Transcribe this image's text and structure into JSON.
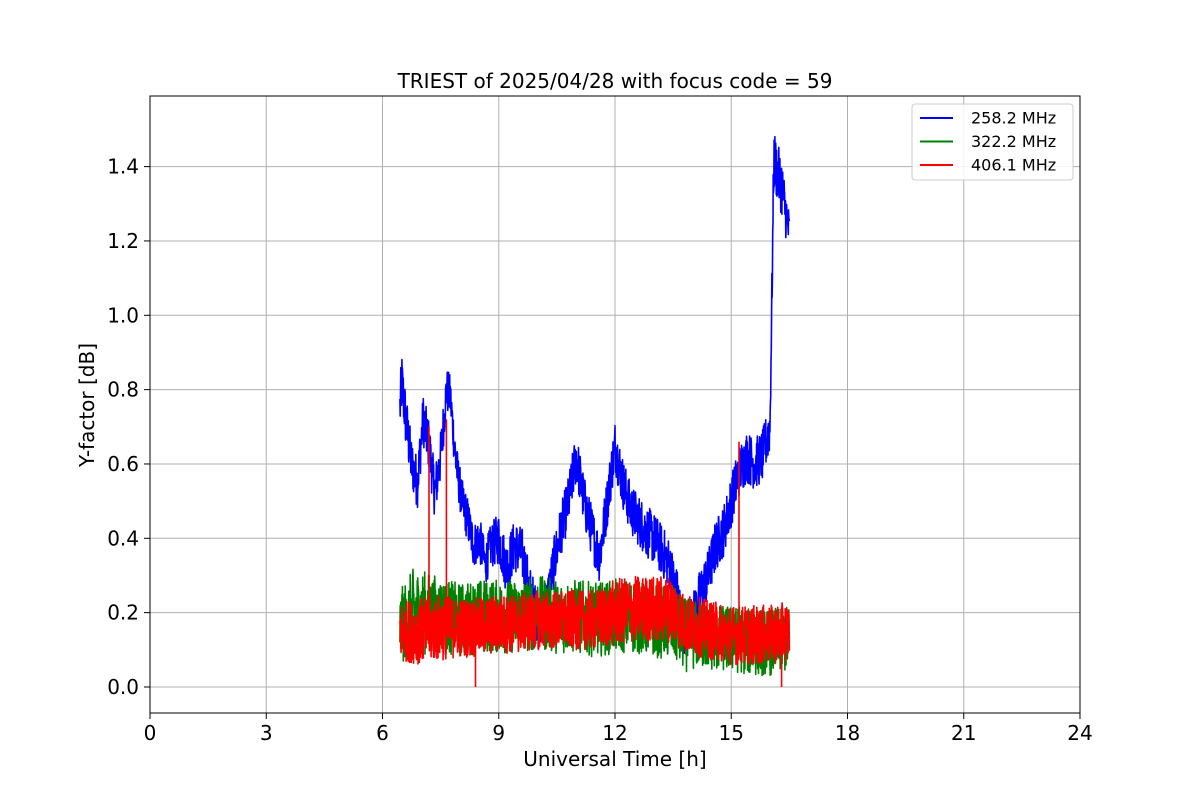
{
  "chart_data": {
    "type": "line",
    "title": "TRIEST of 2025/04/28 with focus code = 59",
    "xlabel": "Universal Time [h]",
    "ylabel": "Y-factor [dB]",
    "xlim": [
      0,
      24
    ],
    "ylim": [
      -0.07,
      1.59
    ],
    "xticks": [
      0,
      3,
      6,
      9,
      12,
      15,
      18,
      21,
      24
    ],
    "yticks": [
      0.0,
      0.2,
      0.4,
      0.6,
      0.8,
      1.0,
      1.2,
      1.4
    ],
    "xtick_labels": [
      "0",
      "3",
      "6",
      "9",
      "12",
      "15",
      "18",
      "21",
      "24"
    ],
    "ytick_labels": [
      "0.0",
      "0.2",
      "0.4",
      "0.6",
      "0.8",
      "1.0",
      "1.2",
      "1.4"
    ],
    "grid": true,
    "legend_position": "top-right",
    "series": [
      {
        "name": "258.2 MHz",
        "color": "#0000ff",
        "x": [
          6.45,
          6.5,
          6.6,
          6.75,
          6.9,
          7.05,
          7.2,
          7.35,
          7.5,
          7.65,
          7.75,
          7.9,
          8.05,
          8.2,
          8.35,
          8.5,
          8.65,
          8.8,
          9.0,
          9.2,
          9.4,
          9.6,
          9.8,
          10.0,
          10.2,
          10.4,
          10.6,
          10.8,
          11.0,
          11.2,
          11.4,
          11.6,
          11.8,
          12.0,
          12.2,
          12.4,
          12.6,
          12.8,
          13.0,
          13.2,
          13.4,
          13.6,
          13.8,
          14.0,
          14.2,
          14.4,
          14.6,
          14.8,
          15.0,
          15.2,
          15.4,
          15.6,
          15.8,
          16.0,
          16.1,
          16.2,
          16.3,
          16.4,
          16.5
        ],
        "y": [
          0.75,
          0.82,
          0.72,
          0.6,
          0.55,
          0.72,
          0.65,
          0.52,
          0.62,
          0.8,
          0.78,
          0.6,
          0.5,
          0.45,
          0.38,
          0.4,
          0.33,
          0.38,
          0.4,
          0.32,
          0.38,
          0.36,
          0.25,
          0.18,
          0.2,
          0.32,
          0.42,
          0.5,
          0.62,
          0.5,
          0.42,
          0.35,
          0.5,
          0.65,
          0.55,
          0.48,
          0.45,
          0.42,
          0.4,
          0.37,
          0.33,
          0.25,
          0.15,
          0.18,
          0.25,
          0.3,
          0.38,
          0.42,
          0.5,
          0.58,
          0.62,
          0.6,
          0.62,
          0.7,
          1.42,
          1.38,
          1.35,
          1.28,
          1.22
        ],
        "amp": [
          0.08,
          0.08,
          0.08,
          0.07,
          0.07,
          0.07,
          0.07,
          0.07,
          0.07,
          0.06,
          0.06,
          0.06,
          0.06,
          0.06,
          0.06,
          0.06,
          0.06,
          0.06,
          0.07,
          0.07,
          0.07,
          0.07,
          0.08,
          0.08,
          0.07,
          0.07,
          0.07,
          0.07,
          0.07,
          0.07,
          0.07,
          0.07,
          0.07,
          0.07,
          0.07,
          0.07,
          0.07,
          0.07,
          0.07,
          0.07,
          0.07,
          0.07,
          0.07,
          0.07,
          0.07,
          0.07,
          0.07,
          0.07,
          0.07,
          0.07,
          0.07,
          0.07,
          0.07,
          0.07,
          0.08,
          0.08,
          0.08,
          0.07,
          0.06
        ]
      },
      {
        "name": "322.2 MHz",
        "color": "#008000",
        "x": [
          6.45,
          6.8,
          7.2,
          7.6,
          8.0,
          8.5,
          9.0,
          9.5,
          10.0,
          10.5,
          11.0,
          11.5,
          12.0,
          12.5,
          13.0,
          13.5,
          13.8,
          14.2,
          14.6,
          15.0,
          15.5,
          16.0,
          16.5
        ],
        "y": [
          0.16,
          0.2,
          0.2,
          0.19,
          0.18,
          0.19,
          0.19,
          0.19,
          0.2,
          0.19,
          0.19,
          0.18,
          0.19,
          0.19,
          0.18,
          0.17,
          0.14,
          0.14,
          0.13,
          0.13,
          0.12,
          0.12,
          0.13
        ],
        "amp": [
          0.1,
          0.12,
          0.11,
          0.1,
          0.1,
          0.1,
          0.1,
          0.1,
          0.1,
          0.1,
          0.1,
          0.1,
          0.1,
          0.1,
          0.1,
          0.1,
          0.1,
          0.09,
          0.09,
          0.09,
          0.09,
          0.09,
          0.09
        ]
      },
      {
        "name": "406.1 MHz",
        "color": "#ff0000",
        "x": [
          6.45,
          7.0,
          7.5,
          8.0,
          8.5,
          9.0,
          9.5,
          10.0,
          10.5,
          11.0,
          11.5,
          12.0,
          12.5,
          13.0,
          13.5,
          13.8,
          14.2,
          14.6,
          15.0,
          15.5,
          16.0,
          16.5
        ],
        "y": [
          0.15,
          0.15,
          0.16,
          0.16,
          0.16,
          0.17,
          0.17,
          0.18,
          0.18,
          0.18,
          0.18,
          0.2,
          0.21,
          0.21,
          0.21,
          0.17,
          0.16,
          0.15,
          0.14,
          0.14,
          0.14,
          0.15
        ],
        "amp": [
          0.08,
          0.09,
          0.09,
          0.08,
          0.08,
          0.08,
          0.08,
          0.08,
          0.08,
          0.08,
          0.08,
          0.09,
          0.09,
          0.09,
          0.09,
          0.08,
          0.08,
          0.08,
          0.08,
          0.08,
          0.08,
          0.08
        ],
        "spikes": [
          [
            7.2,
            0.7
          ],
          [
            7.65,
            0.72
          ],
          [
            8.4,
            0.0
          ],
          [
            15.2,
            0.66
          ],
          [
            16.3,
            0.0
          ]
        ]
      }
    ]
  }
}
